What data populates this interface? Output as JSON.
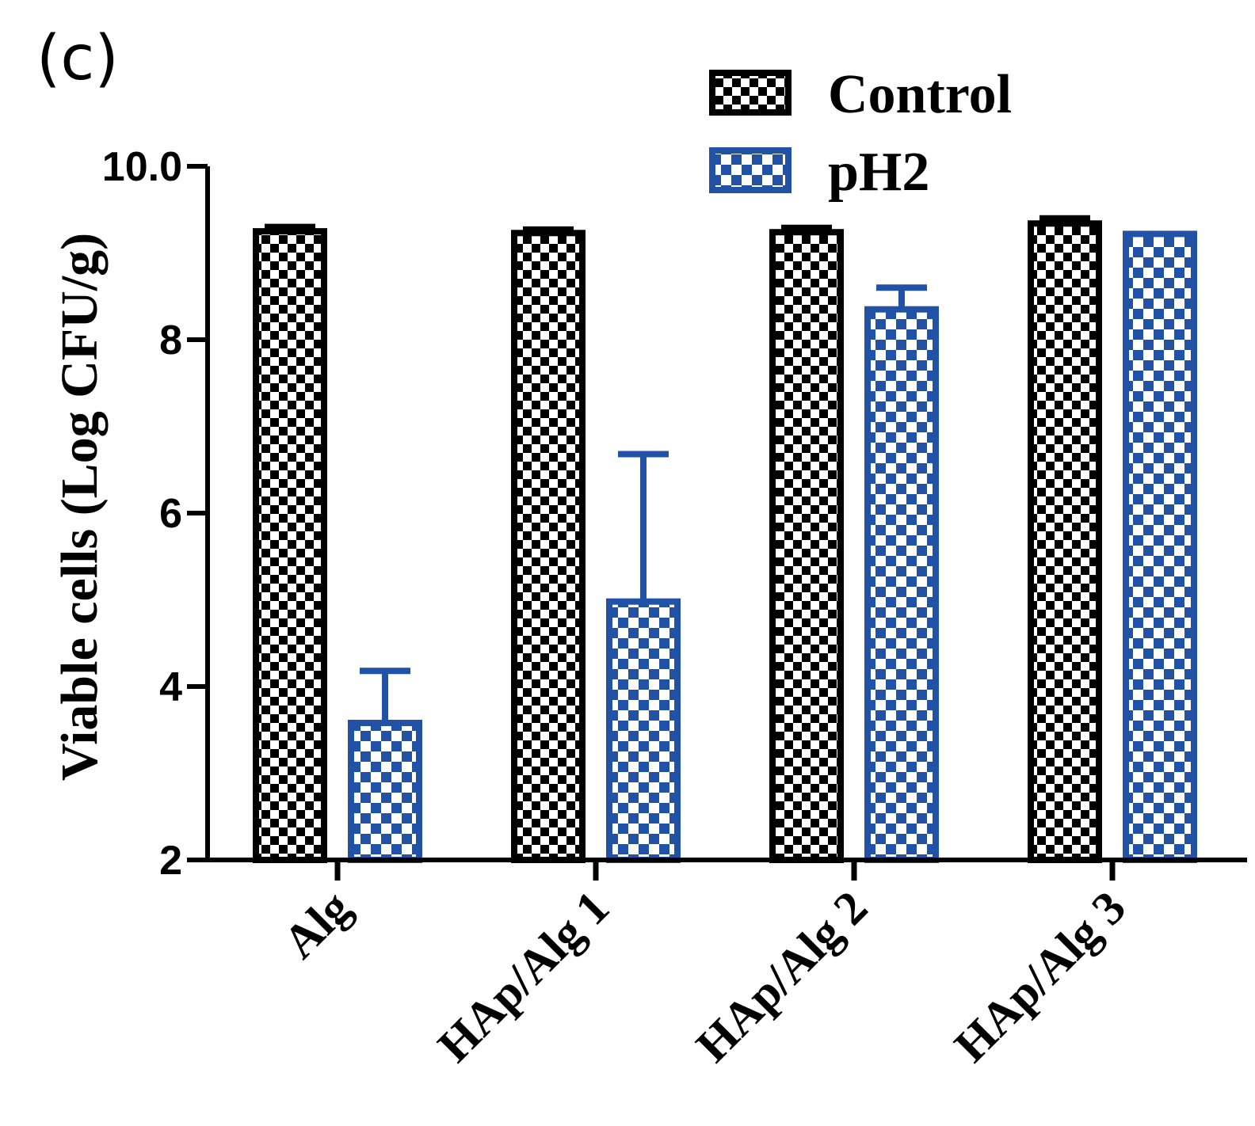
{
  "panel_label": "(c)",
  "chart_data": {
    "type": "bar",
    "title": "",
    "xlabel": "",
    "ylabel": "Viable cells (Log CFU/g)",
    "ylim": [
      2,
      10
    ],
    "yticks": [
      "2",
      "4",
      "6",
      "8",
      "10.0"
    ],
    "grid": false,
    "legend_position": "top-right",
    "categories": [
      "Alg",
      "HAp/Alg 1",
      "HAp/Alg 2",
      "HAp/Alg 3"
    ],
    "series": [
      {
        "name": "Control",
        "color": "#000000",
        "values": [
          9.25,
          9.23,
          9.24,
          9.34
        ],
        "errors": [
          0.05,
          0.04,
          0.05,
          0.06
        ]
      },
      {
        "name": "pH2",
        "color": "#2152a6",
        "values": [
          3.58,
          4.98,
          8.35,
          9.22
        ],
        "errors": [
          0.6,
          1.7,
          0.25,
          0.02
        ]
      }
    ]
  }
}
